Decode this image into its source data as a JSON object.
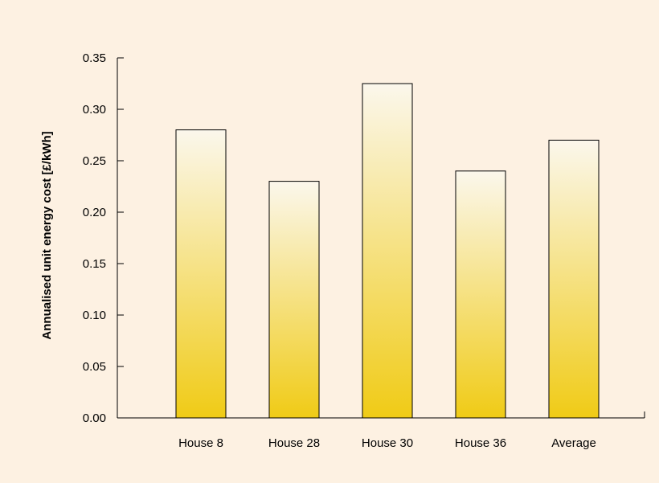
{
  "chart_data": {
    "type": "bar",
    "title": "",
    "xlabel": "",
    "ylabel": "Annualised unit energy cost [£/kWh]",
    "categories": [
      "House 8",
      "House 28",
      "House 30",
      "House 36",
      "Average"
    ],
    "values": [
      0.28,
      0.23,
      0.325,
      0.24,
      0.27
    ],
    "ylim": [
      0,
      0.35
    ],
    "yticks": [
      "0.00",
      "0.05",
      "0.10",
      "0.15",
      "0.20",
      "0.25",
      "0.30",
      "0.35"
    ],
    "grid": false,
    "legend": "none",
    "colors": {
      "background": "#fdf1e2",
      "bar_top": "#fbf7ec",
      "bar_bottom": "#f0cb16",
      "bar_edge": "#000000",
      "axis": "#000000"
    }
  }
}
